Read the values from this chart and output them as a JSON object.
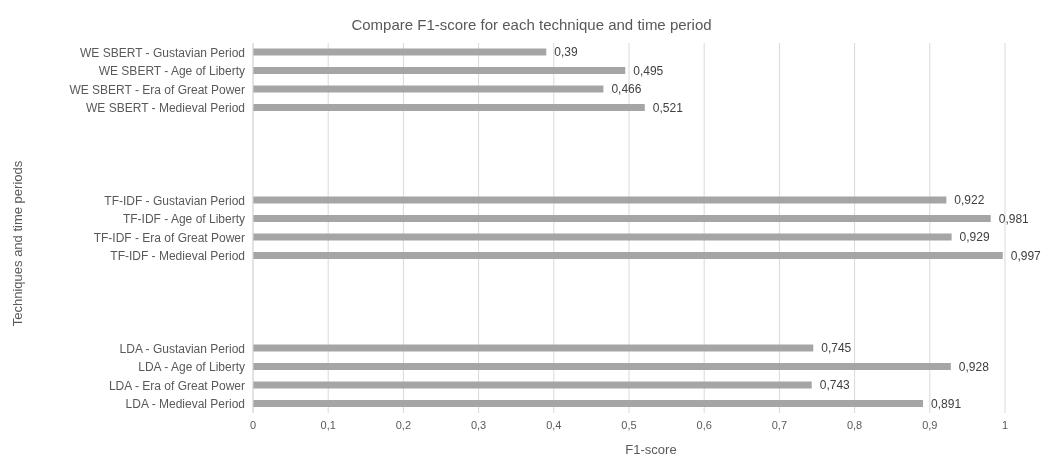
{
  "chart_data": {
    "type": "bar",
    "orientation": "horizontal",
    "title": "Compare F1-score for each technique and time period",
    "xlabel": "F1-score",
    "ylabel": "Techniques and time periods",
    "categories": [
      "WE SBERT - Gustavian Period",
      "WE SBERT - Age of Liberty",
      "WE SBERT - Era of Great Power",
      "WE SBERT - Medieval Period",
      null,
      null,
      null,
      null,
      "TF-IDF - Gustavian Period",
      "TF-IDF - Age of Liberty",
      "TF-IDF - Era of Great Power",
      "TF-IDF - Medieval Period",
      null,
      null,
      null,
      null,
      "LDA - Gustavian Period",
      "LDA - Age of Liberty",
      "LDA - Era of Great Power",
      "LDA - Medieval Period"
    ],
    "values": [
      0.39,
      0.495,
      0.466,
      0.521,
      null,
      null,
      null,
      null,
      0.922,
      0.981,
      0.929,
      0.997,
      null,
      null,
      null,
      null,
      0.745,
      0.928,
      0.743,
      0.891
    ],
    "value_labels": [
      "0,39",
      "0,495",
      "0,466",
      "0,521",
      null,
      null,
      null,
      null,
      "0,922",
      "0,981",
      "0,929",
      "0,997",
      null,
      null,
      null,
      null,
      "0,745",
      "0,928",
      "0,743",
      "0,891"
    ],
    "color": "#a5a5a5",
    "xlim": [
      0,
      1
    ],
    "xticks": [
      {
        "value": 0,
        "label": "0"
      },
      {
        "value": 0.1,
        "label": "0,1"
      },
      {
        "value": 0.2,
        "label": "0,2"
      },
      {
        "value": 0.3,
        "label": "0,3"
      },
      {
        "value": 0.4,
        "label": "0,4"
      },
      {
        "value": 0.5,
        "label": "0,5"
      },
      {
        "value": 0.6,
        "label": "0,6"
      },
      {
        "value": 0.7,
        "label": "0,7"
      },
      {
        "value": 0.8,
        "label": "0,8"
      },
      {
        "value": 0.9,
        "label": "0,9"
      },
      {
        "value": 1,
        "label": "1"
      }
    ],
    "grid": "x",
    "legend": false
  }
}
